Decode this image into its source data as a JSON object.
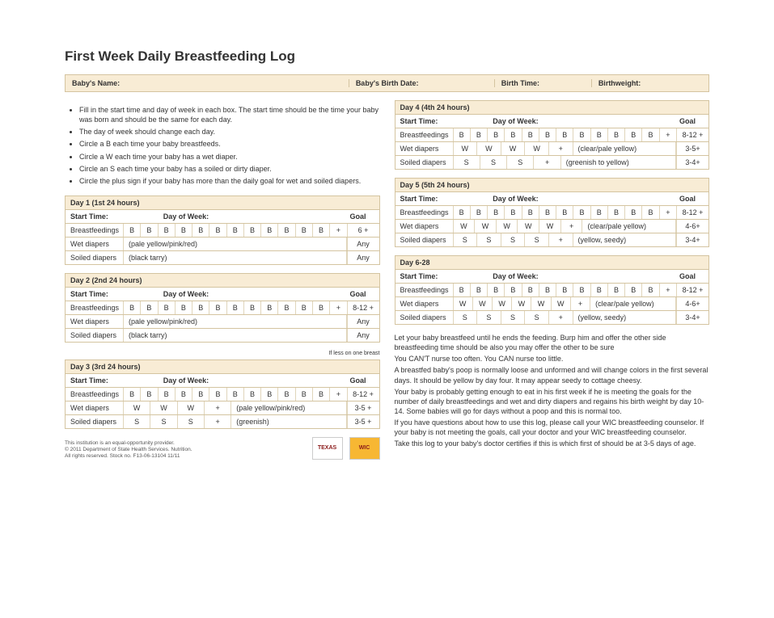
{
  "title": "First Week Daily Breastfeeding Log",
  "info": {
    "name": "Baby's Name:",
    "birthdate": "Baby's Birth Date:",
    "birthtime": "Birth Time:",
    "birthweight": "Birthweight:"
  },
  "instructions": [
    "Fill in the start time and day of week in each box. The start time should be the time your baby was born and should be the same for each day.",
    "The day of week should change each day.",
    "Circle a B each time your baby breastfeeds.",
    "Circle a W each time your baby has a wet diaper.",
    "Circle an S each time your baby has a soiled or dirty diaper.",
    "Circle the plus sign if your baby has more than the daily goal for wet and soiled diapers."
  ],
  "labels": {
    "start_time": "Start Time:",
    "day_of_week": "Day of Week:",
    "goal": "Goal",
    "bf": "Breastfeedings",
    "wet": "Wet diapers",
    "soiled": "Soiled diapers"
  },
  "day1": {
    "header": "Day 1 (1st 24 hours)",
    "bf_cells": [
      "B",
      "B",
      "B",
      "B",
      "B",
      "B",
      "B",
      "B",
      "B",
      "B",
      "B",
      "B",
      "+"
    ],
    "bf_goal": "6 +",
    "wet_note": "(pale yellow/pink/red)",
    "wet_goal": "Any",
    "soiled_note": "(black tarry)",
    "soiled_goal": "Any"
  },
  "day2": {
    "header": "Day 2 (2nd 24 hours)",
    "bf_cells": [
      "B",
      "B",
      "B",
      "B",
      "B",
      "B",
      "B",
      "B",
      "B",
      "B",
      "B",
      "B",
      "+"
    ],
    "bf_goal": "8-12 +",
    "wet_note": "(pale yellow/pink/red)",
    "wet_goal": "Any",
    "soiled_note": "(black tarry)",
    "soiled_goal": "Any"
  },
  "day3": {
    "header": "Day 3 (3rd 24 hours)",
    "bf_cells": [
      "B",
      "B",
      "B",
      "B",
      "B",
      "B",
      "B",
      "B",
      "B",
      "B",
      "B",
      "B",
      "+"
    ],
    "bf_goal": "8-12 +",
    "wet_cells": [
      "W",
      "W",
      "W",
      "+"
    ],
    "wet_note": "(pale yellow/pink/red)",
    "wet_goal": "3-5 +",
    "soiled_cells": [
      "S",
      "S",
      "S",
      "+"
    ],
    "soiled_note": "(greenish)",
    "soiled_goal": "3-5 +"
  },
  "day3_footnote": "If less on one breast",
  "day4": {
    "header": "Day 4 (4th 24 hours)",
    "bf_cells": [
      "B",
      "B",
      "B",
      "B",
      "B",
      "B",
      "B",
      "B",
      "B",
      "B",
      "B",
      "B",
      "+"
    ],
    "bf_goal": "8-12 +",
    "wet_cells": [
      "W",
      "W",
      "W",
      "W",
      "+"
    ],
    "wet_note": "(clear/pale yellow)",
    "wet_goal": "3-5+",
    "soiled_cells": [
      "S",
      "S",
      "S",
      "+"
    ],
    "soiled_note": "(greenish to yellow)",
    "soiled_goal": "3-4+"
  },
  "day5": {
    "header": "Day 5 (5th 24 hours)",
    "bf_cells": [
      "B",
      "B",
      "B",
      "B",
      "B",
      "B",
      "B",
      "B",
      "B",
      "B",
      "B",
      "B",
      "+"
    ],
    "bf_goal": "8-12 +",
    "wet_cells": [
      "W",
      "W",
      "W",
      "W",
      "W",
      "+"
    ],
    "wet_note": "(clear/pale yellow)",
    "wet_goal": "4-6+",
    "soiled_cells": [
      "S",
      "S",
      "S",
      "S",
      "+"
    ],
    "soiled_note": "(yellow, seedy)",
    "soiled_goal": "3-4+"
  },
  "day6": {
    "header": "Day 6-28",
    "bf_cells": [
      "B",
      "B",
      "B",
      "B",
      "B",
      "B",
      "B",
      "B",
      "B",
      "B",
      "B",
      "B",
      "+"
    ],
    "bf_goal": "8-12 +",
    "wet_cells": [
      "W",
      "W",
      "W",
      "W",
      "W",
      "W",
      "+"
    ],
    "wet_note": "(clear/pale yellow)",
    "wet_goal": "4-6+",
    "soiled_cells": [
      "S",
      "S",
      "S",
      "S",
      "+"
    ],
    "soiled_note": "(yellow, seedy)",
    "soiled_goal": "3-4+"
  },
  "bottom_text": [
    "Let your baby breastfeed until he ends the feeding. Burp him and offer the other side breastfeeding time should be also you may offer the other to be sure",
    "You CAN'T nurse too often. You CAN nurse too little.",
    "A breastfed baby's poop is normally loose and unformed and will change colors in the first several days. It should be yellow by day four. It may appear seedy to cottage cheesy.",
    "Your baby is probably getting enough to eat in his first week if he is meeting the goals for the number of daily breastfeedings and wet and dirty diapers and regains his birth weight by day 10-14. Some babies will go for days without a poop and this is normal too.",
    "If you have questions about how to use this log, please call your WIC breastfeeding counselor. If your baby is not meeting the goals, call your doctor and your WIC breastfeeding counselor.",
    "Take this log to your baby's doctor certifies if this is which first of should be at 3-5 days of age."
  ],
  "footer": {
    "line1": "This institution is an equal-opportunity provider.",
    "line2": "© 2011 Department of State Health Services. Nutrition.",
    "line3": "All rights reserved. Stock no. F13-06-13104 11/11"
  },
  "logos": {
    "texas": "TEXAS",
    "wic": "WIC"
  }
}
